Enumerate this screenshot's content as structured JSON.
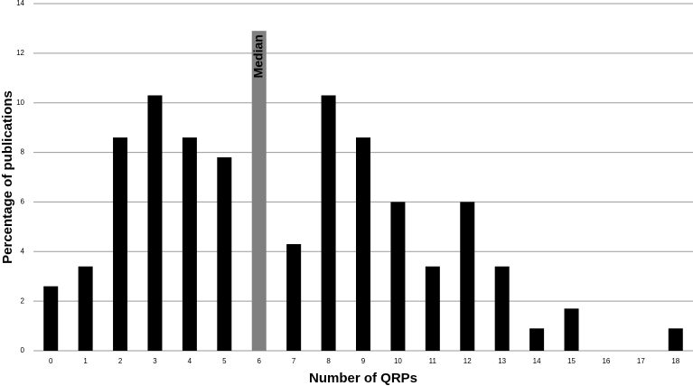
{
  "chart_data": {
    "type": "bar",
    "x_label": "Number of QRPs",
    "y_label": "Percentage of publications",
    "categories": [
      "0",
      "1",
      "2",
      "3",
      "4",
      "5",
      "6",
      "7",
      "8",
      "9",
      "10",
      "11",
      "12",
      "13",
      "14",
      "15",
      "16",
      "17",
      "18"
    ],
    "values": [
      2.6,
      3.4,
      8.6,
      10.3,
      8.6,
      7.8,
      12.9,
      4.3,
      10.3,
      8.6,
      6.0,
      3.4,
      6.0,
      3.4,
      0.9,
      1.7,
      0,
      0,
      0.9
    ],
    "colors": [
      "#000000",
      "#000000",
      "#000000",
      "#000000",
      "#000000",
      "#000000",
      "#808080",
      "#000000",
      "#000000",
      "#000000",
      "#000000",
      "#000000",
      "#000000",
      "#000000",
      "#000000",
      "#000000",
      "#000000",
      "#000000",
      "#000000"
    ],
    "annotations": [
      {
        "text": "Median",
        "category": "6"
      }
    ],
    "ylim": [
      0,
      14
    ],
    "yticks": [
      0,
      2,
      4,
      6,
      8,
      10,
      12,
      14
    ],
    "grid": true
  }
}
